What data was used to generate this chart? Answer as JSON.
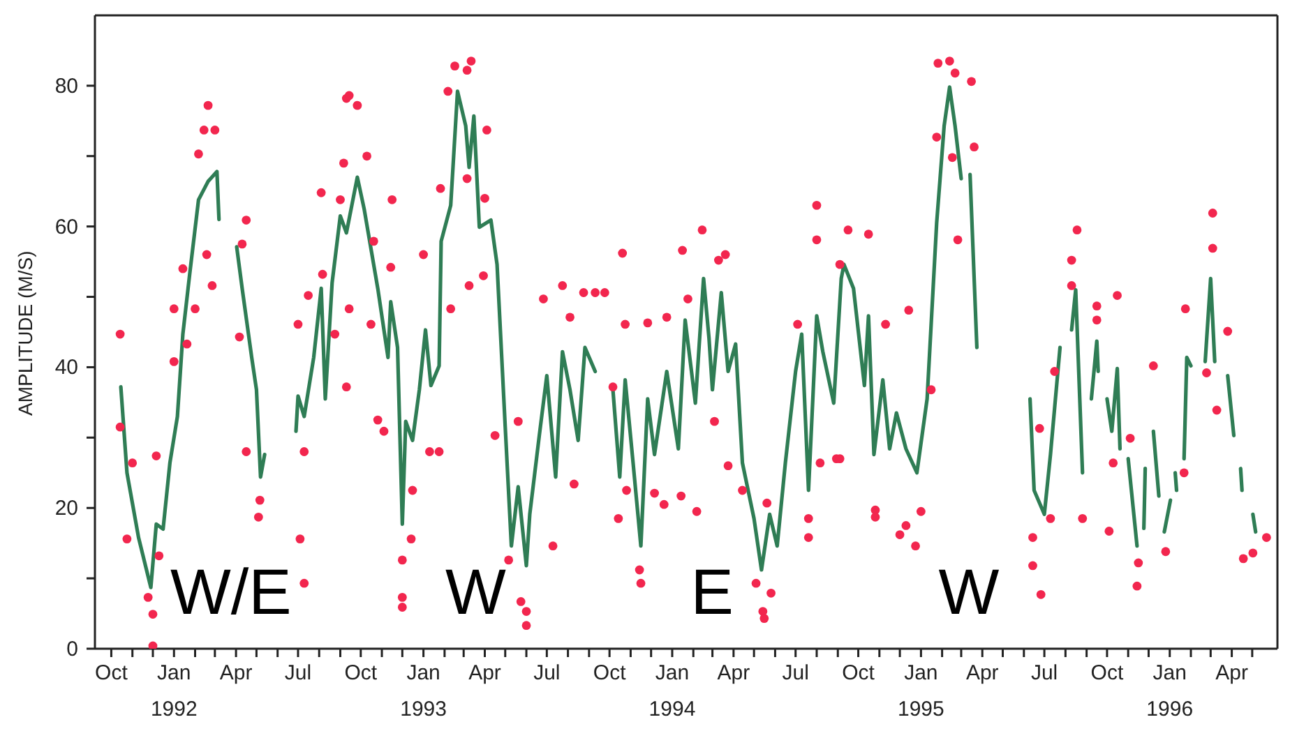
{
  "chart_data": {
    "type": "line",
    "ylabel": "AMPLITUDE (M/S)",
    "xlim": [
      "1991-09-07",
      "1996-06-07"
    ],
    "xticks": [
      {
        "value": "1991-10-01",
        "label": "Oct"
      },
      {
        "value": "1991-11-01",
        "label": null
      },
      {
        "value": "1991-12-01",
        "label": null
      },
      {
        "value": "1992-01-01",
        "label": "Jan\n1992"
      },
      {
        "value": "1992-02-01",
        "label": null
      },
      {
        "value": "1992-03-01",
        "label": null
      },
      {
        "value": "1992-04-01",
        "label": "Apr"
      },
      {
        "value": "1992-05-01",
        "label": null
      },
      {
        "value": "1992-06-01",
        "label": null
      },
      {
        "value": "1992-07-01",
        "label": "Jul"
      },
      {
        "value": "1992-08-01",
        "label": null
      },
      {
        "value": "1992-09-01",
        "label": null
      },
      {
        "value": "1992-10-01",
        "label": "Oct"
      },
      {
        "value": "1992-11-01",
        "label": null
      },
      {
        "value": "1992-12-01",
        "label": null
      },
      {
        "value": "1993-01-01",
        "label": "Jan\n1993"
      },
      {
        "value": "1993-02-01",
        "label": null
      },
      {
        "value": "1993-03-01",
        "label": null
      },
      {
        "value": "1993-04-01",
        "label": "Apr"
      },
      {
        "value": "1993-05-01",
        "label": null
      },
      {
        "value": "1993-06-01",
        "label": null
      },
      {
        "value": "1993-07-01",
        "label": "Jul"
      },
      {
        "value": "1993-08-01",
        "label": null
      },
      {
        "value": "1993-09-01",
        "label": null
      },
      {
        "value": "1993-10-01",
        "label": "Oct"
      },
      {
        "value": "1993-11-01",
        "label": null
      },
      {
        "value": "1993-12-01",
        "label": null
      },
      {
        "value": "1994-01-01",
        "label": "Jan\n1994"
      },
      {
        "value": "1994-02-01",
        "label": null
      },
      {
        "value": "1994-03-01",
        "label": null
      },
      {
        "value": "1994-04-01",
        "label": "Apr"
      },
      {
        "value": "1994-05-01",
        "label": null
      },
      {
        "value": "1994-06-01",
        "label": null
      },
      {
        "value": "1994-07-01",
        "label": "Jul"
      },
      {
        "value": "1994-08-01",
        "label": null
      },
      {
        "value": "1994-09-01",
        "label": null
      },
      {
        "value": "1994-10-01",
        "label": "Oct"
      },
      {
        "value": "1994-11-01",
        "label": null
      },
      {
        "value": "1994-12-01",
        "label": null
      },
      {
        "value": "1995-01-01",
        "label": "Jan\n1995"
      },
      {
        "value": "1995-02-01",
        "label": null
      },
      {
        "value": "1995-03-01",
        "label": null
      },
      {
        "value": "1995-04-01",
        "label": "Apr"
      },
      {
        "value": "1995-05-01",
        "label": null
      },
      {
        "value": "1995-06-01",
        "label": null
      },
      {
        "value": "1995-07-01",
        "label": "Jul"
      },
      {
        "value": "1995-08-01",
        "label": null
      },
      {
        "value": "1995-09-01",
        "label": null
      },
      {
        "value": "1995-10-01",
        "label": "Oct"
      },
      {
        "value": "1995-11-01",
        "label": null
      },
      {
        "value": "1995-12-01",
        "label": null
      },
      {
        "value": "1996-01-01",
        "label": "Jan\n1996"
      },
      {
        "value": "1996-02-01",
        "label": null
      },
      {
        "value": "1996-03-01",
        "label": null
      },
      {
        "value": "1996-04-01",
        "label": "Apr"
      },
      {
        "value": "1996-05-01",
        "label": null
      }
    ],
    "ylim": [
      0,
      90
    ],
    "yticks": [
      0,
      {
        "value": 10,
        "label": null
      },
      20,
      {
        "value": 30,
        "label": null
      },
      40,
      {
        "value": 50,
        "label": null
      },
      60,
      {
        "value": 70,
        "label": null
      },
      80
    ],
    "marker": "none",
    "annotations": [
      "W/E",
      "W",
      "E",
      "W"
    ],
    "series": [
      {
        "type": "scatter",
        "color": "#f2264e",
        "marker": "circle",
        "x": [
          "1991-10-14",
          "1991-10-14",
          "1991-10-24",
          "1991-11-01",
          "1991-11-24",
          "1991-12-01",
          "1991-12-01",
          "1991-12-10",
          "1991-12-06",
          "1992-01-01",
          "1992-01-01",
          "1992-01-14",
          "1992-01-20",
          "1992-02-01",
          "1992-02-06",
          "1992-02-14",
          "1992-02-20",
          "1992-03-01",
          "1992-02-26",
          "1992-02-18",
          "1992-04-16",
          "1992-04-10",
          "1992-04-06",
          "1992-04-16",
          "1992-05-04",
          "1992-05-06",
          "1992-07-01",
          "1992-07-04",
          "1992-07-10",
          "1992-07-16",
          "1992-07-10",
          "1992-08-04",
          "1992-08-06",
          "1992-08-24",
          "1992-09-01",
          "1992-09-06",
          "1992-09-10",
          "1992-09-14",
          "1992-09-26",
          "1992-09-14",
          "1992-09-10",
          "1992-10-10",
          "1992-10-20",
          "1992-11-16",
          "1992-11-14",
          "1992-10-16",
          "1992-11-04",
          "1992-10-26",
          "1992-12-01",
          "1992-12-01",
          "1992-12-01",
          "1992-12-14",
          "1992-12-16",
          "1993-01-01",
          "1993-01-10",
          "1993-01-24",
          "1993-02-10",
          "1993-01-26",
          "1993-02-06",
          "1993-02-16",
          "1993-03-12",
          "1993-03-06",
          "1993-03-06",
          "1993-03-09",
          "1993-04-04",
          "1993-04-01",
          "1993-03-30",
          "1993-04-16",
          "1993-05-06",
          "1993-05-24",
          "1993-06-01",
          "1993-06-01",
          "1993-05-20",
          "1993-06-26",
          "1993-07-10",
          "1993-07-24",
          "1993-08-04",
          "1993-08-10",
          "1993-08-24",
          "1993-09-10",
          "1993-09-24",
          "1993-10-06",
          "1993-10-14",
          "1993-10-20",
          "1993-10-24",
          "1993-10-26",
          "1993-11-14",
          "1993-11-16",
          "1993-11-26",
          "1993-12-06",
          "1993-12-20",
          "1993-12-24",
          "1994-01-14",
          "1994-01-16",
          "1994-02-06",
          "1994-02-14",
          "1994-01-24",
          "1994-03-04",
          "1994-03-10",
          "1994-03-20",
          "1994-03-24",
          "1994-04-14",
          "1994-05-04",
          "1994-05-14",
          "1994-05-16",
          "1994-05-26",
          "1994-05-20",
          "1994-07-04",
          "1994-07-20",
          "1994-07-20",
          "1994-08-01",
          "1994-08-01",
          "1994-08-06",
          "1994-08-30",
          "1994-09-04",
          "1994-09-16",
          "1994-09-04",
          "1994-10-16",
          "1994-11-10",
          "1994-10-26",
          "1994-10-26",
          "1994-12-01",
          "1994-12-10",
          "1994-12-24",
          "1994-12-14",
          "1995-01-01",
          "1995-01-26",
          "1995-02-12",
          "1995-02-20",
          "1995-01-24",
          "1995-02-16",
          "1995-02-24",
          "1995-03-20",
          "1995-03-16",
          "1995-01-16",
          "1995-06-14",
          "1995-06-14",
          "1995-06-26",
          "1995-07-10",
          "1995-06-24",
          "1995-07-16",
          "1995-08-10",
          "1995-08-18",
          "1995-08-10",
          "1995-08-26",
          "1995-09-16",
          "1995-09-16",
          "1995-10-16",
          "1995-10-04",
          "1995-10-10",
          "1995-11-04",
          "1995-11-14",
          "1995-11-16",
          "1995-12-08",
          "1995-12-26",
          "1996-01-24",
          "1996-01-22",
          "1996-03-04",
          "1996-03-04",
          "1996-02-24",
          "1996-03-26",
          "1996-03-10",
          "1996-04-18",
          "1996-05-02",
          "1996-05-22"
        ],
        "values": [
          44.7,
          31.5,
          15.6,
          26.4,
          7.3,
          0.4,
          4.9,
          13.2,
          27.4,
          40.8,
          48.3,
          54,
          43.3,
          48.3,
          70.3,
          73.7,
          77.2,
          73.7,
          51.6,
          56,
          60.9,
          57.5,
          44.3,
          28,
          18.7,
          21.1,
          46.1,
          15.6,
          9.3,
          50.2,
          28,
          64.8,
          53.2,
          44.7,
          63.8,
          69,
          78.2,
          78.6,
          77.2,
          48.3,
          37.2,
          70,
          57.9,
          63.8,
          54.2,
          46.1,
          30.9,
          32.5,
          12.6,
          7.3,
          5.9,
          15.6,
          22.5,
          56,
          28,
          28,
          48.3,
          65.4,
          79.2,
          82.8,
          83.5,
          82.2,
          66.8,
          51.6,
          73.7,
          64,
          53,
          30.3,
          12.6,
          6.7,
          3.3,
          5.3,
          32.3,
          49.7,
          14.6,
          51.6,
          47.1,
          23.4,
          50.6,
          50.6,
          50.6,
          37.2,
          18.5,
          56.2,
          46.1,
          22.5,
          11.2,
          9.3,
          46.3,
          22.1,
          20.5,
          47.1,
          21.7,
          56.6,
          19.5,
          59.5,
          49.7,
          32.3,
          55.2,
          56,
          26,
          22.5,
          9.3,
          5.3,
          4.3,
          7.9,
          20.7,
          46.1,
          18.5,
          15.8,
          63,
          58.1,
          26.4,
          27,
          54.6,
          59.5,
          27,
          58.9,
          46.1,
          19.7,
          18.7,
          16.2,
          17.5,
          14.6,
          48.1,
          19.5,
          83.2,
          83.5,
          81.8,
          72.7,
          69.8,
          58.1,
          71.3,
          80.6,
          36.8,
          15.8,
          11.8,
          7.7,
          18.5,
          31.3,
          39.4,
          55.2,
          59.5,
          51.6,
          18.5,
          48.7,
          46.7,
          50.2,
          16.7,
          26.4,
          29.9,
          8.9,
          12.2,
          40.2,
          13.8,
          48.3,
          25,
          61.9,
          56.9,
          39.2,
          45.1,
          33.9,
          12.8,
          13.6,
          15.8
        ]
      },
      {
        "color": "#2f7d55",
        "line_style": "solid",
        "x": [
          "1991-10-15",
          "1991-10-24",
          "1991-11-10",
          "1991-11-28",
          "1991-12-06",
          "1991-12-16",
          "1991-12-26",
          "1992-01-06",
          "1992-01-14",
          "1992-01-24",
          "1992-02-06",
          "1992-02-20",
          "1992-03-04",
          "1992-03-07",
          "1992-03-20",
          "1992-04-02",
          "1992-04-10",
          "1992-04-24",
          "1992-05-01",
          "1992-05-07",
          "1992-05-13",
          "1992-06-10",
          "1992-06-28",
          "1992-07-01",
          "1992-07-10",
          "1992-07-24",
          "1992-08-04",
          "1992-08-10",
          "1992-08-20",
          "1992-09-01",
          "1992-09-10",
          "1992-09-26",
          "1992-10-06",
          "1992-10-26",
          "1992-11-10",
          "1992-11-14",
          "1992-11-24",
          "1992-12-01",
          "1992-12-06",
          "1992-12-16",
          "1992-12-26",
          "1993-01-04",
          "1993-01-12",
          "1993-01-24",
          "1993-01-27",
          "1993-02-10",
          "1993-02-20",
          "1993-03-04",
          "1993-03-09",
          "1993-03-16",
          "1993-03-24",
          "1993-04-10",
          "1993-04-19",
          "1993-05-01",
          "1993-05-10",
          "1993-05-20",
          "1993-06-01",
          "1993-06-06",
          "1993-06-20",
          "1993-07-01",
          "1993-07-14",
          "1993-07-24",
          "1993-08-04",
          "1993-08-16",
          "1993-08-26",
          "1993-09-10",
          "1993-09-24",
          "1993-10-06",
          "1993-10-16",
          "1993-10-24",
          "1993-11-04",
          "1993-11-16",
          "1993-11-26",
          "1993-12-06",
          "1993-12-24",
          "1994-01-10",
          "1994-01-20",
          "1994-02-04",
          "1994-02-16",
          "1994-02-24",
          "1994-03-01",
          "1994-03-14",
          "1994-03-24",
          "1994-04-04",
          "1994-04-14",
          "1994-05-01",
          "1994-05-12",
          "1994-05-24",
          "1994-06-04",
          "1994-06-16",
          "1994-07-01",
          "1994-07-10",
          "1994-07-20",
          "1994-08-01",
          "1994-08-10",
          "1994-08-26",
          "1994-09-06",
          "1994-09-10",
          "1994-09-24",
          "1994-10-10",
          "1994-10-16",
          "1994-10-24",
          "1994-11-06",
          "1994-11-16",
          "1994-11-26",
          "1994-12-10",
          "1994-12-26",
          "1995-01-10",
          "1995-01-24",
          "1995-02-04",
          "1995-02-12",
          "1995-02-20",
          "1995-03-01",
          "1995-03-08",
          "1995-03-14",
          "1995-03-24",
          "1995-05-01",
          "1995-06-10",
          "1995-06-16",
          "1995-07-01",
          "1995-07-10",
          "1995-07-24",
          "1995-08-02",
          "1995-08-10",
          "1995-08-16",
          "1995-08-26",
          "1995-09-02",
          "1995-09-08",
          "1995-09-16",
          "1995-09-18",
          "1995-09-24",
          "1995-10-01",
          "1995-10-08",
          "1995-10-16",
          "1995-10-20",
          "1995-10-26",
          "1995-11-01",
          "1995-11-14",
          "1995-11-20",
          "1995-11-24",
          "1995-11-26",
          "1995-12-02",
          "1995-12-08",
          "1995-12-16",
          "1995-12-20",
          "1995-12-24",
          "1996-01-02",
          "1996-01-06",
          "1996-01-09",
          "1996-01-11",
          "1996-01-16",
          "1996-01-22",
          "1996-01-26",
          "1996-02-01",
          "1996-02-12",
          "1996-02-22",
          "1996-03-01",
          "1996-03-07",
          "1996-03-16",
          "1996-03-26",
          "1996-04-04",
          "1996-04-09",
          "1996-04-14",
          "1996-04-16",
          "1996-04-24",
          "1996-05-02",
          "1996-05-06"
        ],
        "values": [
          37.2,
          25,
          15.8,
          8.7,
          17.7,
          17,
          26.4,
          33,
          44.7,
          53.2,
          63.8,
          66.4,
          67.8,
          61,
          null,
          57.1,
          51.2,
          41.4,
          36.8,
          24.4,
          27.6,
          null,
          30.9,
          35.9,
          33,
          41.4,
          51.2,
          35.5,
          52,
          61.5,
          59.1,
          67,
          62.5,
          51.2,
          41.4,
          49.3,
          42.8,
          17.7,
          32.3,
          29.6,
          36.8,
          45.3,
          37.4,
          40.2,
          57.9,
          63,
          79.2,
          74.3,
          68.4,
          75.7,
          59.9,
          60.9,
          54.6,
          31.5,
          14.6,
          23,
          11.8,
          19.1,
          30.3,
          38.8,
          24.4,
          42.2,
          36.8,
          29.6,
          42.8,
          39.4,
          null,
          36.8,
          24.4,
          38.2,
          27,
          14.6,
          35.5,
          27.6,
          39.4,
          28.4,
          46.7,
          34.9,
          52.6,
          44.1,
          36.8,
          50.6,
          39.4,
          43.3,
          26.4,
          18.5,
          11.2,
          19.1,
          14.6,
          26.4,
          39.4,
          44.7,
          22.5,
          47.3,
          42.2,
          34.9,
          52.6,
          54.6,
          51.2,
          37.4,
          47.3,
          27.6,
          38.2,
          28.4,
          33.5,
          28.4,
          25,
          35.5,
          60.5,
          74.3,
          79.8,
          74.3,
          66.8,
          null,
          67.4,
          42.8,
          null,
          35.5,
          22.5,
          19.1,
          27.6,
          42.8,
          null,
          45.3,
          51,
          25,
          null,
          35.5,
          43.7,
          39.4,
          null,
          35.5,
          30.9,
          39.8,
          28.4,
          null,
          27,
          14.6,
          null,
          17.1,
          25.6,
          null,
          30.9,
          21.7,
          null,
          16.6,
          21.1,
          null,
          25,
          22.5,
          null,
          27,
          41.4,
          40.2,
          null,
          40.8,
          52.6,
          40.8,
          null,
          38.8,
          30.3,
          null,
          25.6,
          22.5,
          null,
          19.1,
          16.6
        ]
      }
    ]
  }
}
